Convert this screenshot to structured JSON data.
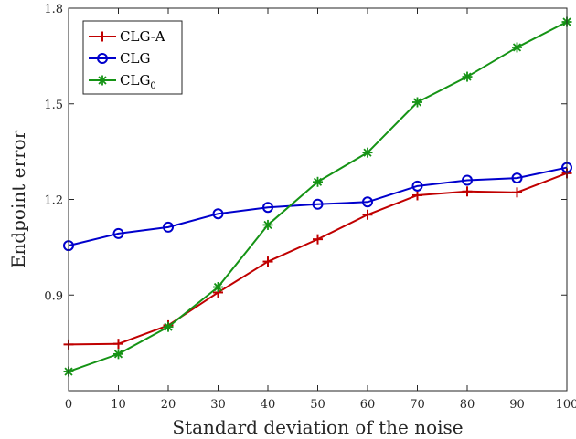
{
  "chart_data": {
    "type": "line",
    "xlabel": "Standard deviation of the noise",
    "ylabel": "Endpoint error",
    "x": [
      0,
      10,
      20,
      30,
      40,
      50,
      60,
      70,
      80,
      90,
      100
    ],
    "xticks": [
      "0",
      "10",
      "20",
      "30",
      "40",
      "50",
      "60",
      "70",
      "80",
      "90",
      "100"
    ],
    "yticks": [
      "0.9",
      "1.2",
      "1.5",
      "1.8"
    ],
    "ytick_values": [
      0.9,
      1.2,
      1.5,
      1.8
    ],
    "xlim": [
      0,
      100
    ],
    "ylim": [
      0.6,
      1.8
    ],
    "grid": false,
    "legend_position": "top-left",
    "series": [
      {
        "name": "CLG-A",
        "color": "#c00000",
        "marker": "plus",
        "values": [
          0.745,
          0.747,
          0.805,
          0.908,
          1.005,
          1.075,
          1.152,
          1.213,
          1.225,
          1.222,
          1.282
        ]
      },
      {
        "name": "CLG",
        "color": "#0000cc",
        "marker": "circle",
        "values": [
          1.055,
          1.093,
          1.113,
          1.155,
          1.175,
          1.185,
          1.192,
          1.242,
          1.26,
          1.267,
          1.3
        ]
      },
      {
        "name": "CLG",
        "name_subscript": "0",
        "color": "#159315",
        "marker": "asterisk",
        "values": [
          0.66,
          0.715,
          0.8,
          0.925,
          1.12,
          1.255,
          1.347,
          1.505,
          1.585,
          1.677,
          1.757
        ]
      }
    ]
  }
}
